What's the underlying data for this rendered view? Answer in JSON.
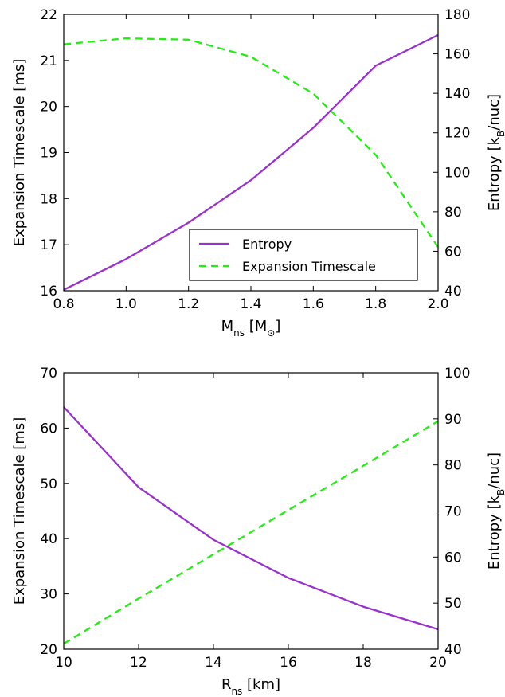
{
  "chart_data": [
    {
      "type": "line",
      "xlabel": {
        "main": "M",
        "sub": "ns",
        "unit": "[M",
        "unit_sub": "⊙",
        "unit_close": "]"
      },
      "ylabel_left": "Expansion Timescale [ms]",
      "ylabel_right": {
        "main": "Entropy [k",
        "sub": "B",
        "tail": "/nuc]"
      },
      "xlim": [
        0.8,
        2.0
      ],
      "ylim_left": [
        16,
        22
      ],
      "ylim_right": [
        40,
        180
      ],
      "xticks": [
        "0.8",
        "1.0",
        "1.2",
        "1.4",
        "1.6",
        "1.8",
        "2.0"
      ],
      "yticks_left": [
        "16",
        "17",
        "18",
        "19",
        "20",
        "21",
        "22"
      ],
      "yticks_right": [
        "40",
        "60",
        "80",
        "100",
        "120",
        "140",
        "160",
        "180"
      ],
      "legend": {
        "position": "lower-right",
        "entries": [
          "Entropy",
          "Expansion Timescale"
        ]
      },
      "series": [
        {
          "name": "Entropy",
          "axis": "right",
          "style": "solid",
          "color": "#9932cc",
          "x": [
            0.8,
            1.0,
            1.2,
            1.4,
            1.6,
            1.8,
            2.0
          ],
          "y": [
            40.5,
            56.0,
            74.5,
            96.0,
            122.5,
            154.0,
            169.5
          ]
        },
        {
          "name": "Expansion Timescale",
          "axis": "left",
          "style": "dashed",
          "color": "#22ee11",
          "x": [
            0.8,
            1.0,
            1.2,
            1.4,
            1.6,
            1.8,
            2.0
          ],
          "y": [
            21.35,
            21.48,
            21.45,
            21.08,
            20.28,
            18.95,
            16.95
          ]
        }
      ]
    },
    {
      "type": "line",
      "xlabel": {
        "main": "R",
        "sub": "ns",
        "unit": "[km]"
      },
      "ylabel_left": "Expansion Timescale [ms]",
      "ylabel_right": {
        "main": "Entropy [k",
        "sub": "B",
        "tail": "/nuc]"
      },
      "xlim": [
        10,
        20
      ],
      "ylim_left": [
        20,
        70
      ],
      "ylim_right": [
        40,
        100
      ],
      "xticks": [
        "10",
        "12",
        "14",
        "16",
        "18",
        "20"
      ],
      "yticks_left": [
        "20",
        "30",
        "40",
        "50",
        "60",
        "70"
      ],
      "yticks_right": [
        "40",
        "50",
        "60",
        "70",
        "80",
        "90",
        "100"
      ],
      "series": [
        {
          "name": "Entropy",
          "axis": "left",
          "style": "solid",
          "color": "#9932cc",
          "x": [
            10,
            12,
            14,
            16,
            18,
            20
          ],
          "y": [
            63.8,
            49.3,
            39.8,
            32.9,
            27.7,
            23.6
          ]
        },
        {
          "name": "Expansion Timescale",
          "axis": "right",
          "style": "dashed",
          "color": "#22ee11",
          "x": [
            10,
            12,
            14,
            16,
            18,
            20
          ],
          "y": [
            41.2,
            51.0,
            60.6,
            70.2,
            79.8,
            89.5
          ]
        }
      ]
    }
  ]
}
